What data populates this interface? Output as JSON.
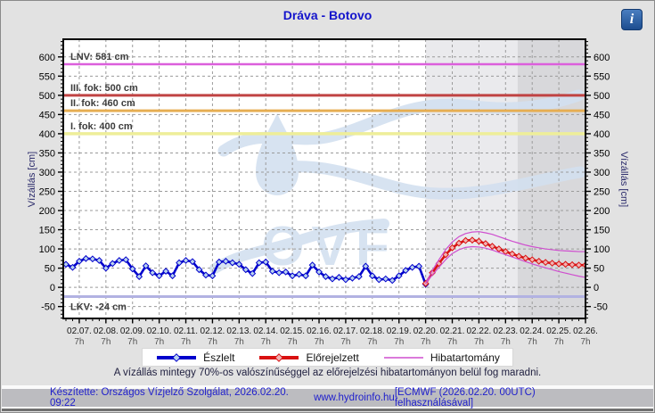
{
  "header": {
    "title": "Dráva - Botovo",
    "info_icon": "i"
  },
  "chart_data": {
    "type": "line",
    "title": "Dráva - Botovo",
    "x_axis": {
      "dates": [
        "02.07.",
        "02.08.",
        "02.09.",
        "02.10.",
        "02.11.",
        "02.12.",
        "02.13.",
        "02.14.",
        "02.15.",
        "02.16.",
        "02.17.",
        "02.18.",
        "02.19.",
        "02.20.",
        "02.21.",
        "02.22.",
        "02.23.",
        "02.24.",
        "02.25.",
        "02.26."
      ],
      "hour_label": "7h",
      "xlim_days": [
        -0.6,
        19.0
      ],
      "minor_tick_day_step": 0.25
    },
    "y_axis": {
      "label_left": "Vízállás [cm]",
      "label_right": "Vízállás [cm]",
      "ylim": [
        -81,
        646
      ],
      "tick_min": -50,
      "tick_max": 600,
      "tick_step": 50,
      "minor_tick_step": 10,
      "grid": true
    },
    "reference_lines": [
      {
        "name": "LNV",
        "label": "LNV: 581 cm",
        "value": 581,
        "color": "#dc5fdc",
        "width": 2.5,
        "label_below": false
      },
      {
        "name": "fok3",
        "label": "III. fok: 500 cm",
        "value": 500,
        "color": "#c04343",
        "width": 3,
        "label_below": false
      },
      {
        "name": "fok2",
        "label": "II. fok: 460 cm",
        "value": 460,
        "color": "#e6ae53",
        "width": 3,
        "label_below": false
      },
      {
        "name": "fok1",
        "label": "I. fok: 400 cm",
        "value": 400,
        "color": "#eeee99",
        "width": 3.5,
        "label_below": false
      },
      {
        "name": "LKV",
        "label": "LKV: -24 cm",
        "value": -24,
        "color": "#b2b2e2",
        "width": 3,
        "label_below": true
      }
    ],
    "shaded_regions": [
      {
        "from_day": 13.0,
        "to_day": 16.45,
        "color": "#eaeaed"
      },
      {
        "from_day": 16.45,
        "to_day": 19.0,
        "color": "#d8d8db"
      }
    ],
    "series": [
      {
        "name": "Észlelt",
        "type": "observed",
        "line_color": "#0000cc",
        "marker_fill": "#b9d2ee",
        "start_day": -0.5,
        "step_day": 0.25,
        "values": [
          60,
          52,
          68,
          75,
          74,
          70,
          50,
          62,
          70,
          72,
          48,
          28,
          56,
          38,
          30,
          42,
          30,
          64,
          70,
          67,
          46,
          32,
          30,
          66,
          68,
          64,
          60,
          46,
          36,
          64,
          66,
          42,
          38,
          40,
          30,
          34,
          30,
          58,
          40,
          28,
          22,
          26,
          20,
          24,
          28,
          55,
          30,
          20,
          22,
          18,
          30,
          44,
          52,
          55,
          8
        ]
      },
      {
        "name": "Előrejelzett",
        "type": "forecast",
        "line_color": "#d91111",
        "marker_fill": "#f1b2b2",
        "start_day": 13.0,
        "step_day": 0.25,
        "values": [
          10,
          38,
          62,
          85,
          103,
          115,
          122,
          123,
          120,
          114,
          107,
          100,
          93,
          87,
          81,
          76,
          72,
          68,
          65,
          63,
          61,
          60,
          59,
          58,
          58
        ]
      },
      {
        "name": "Hibatartomány felső",
        "type": "band",
        "line_color": "#cf4fcf",
        "start_day": 13.0,
        "step_day": 0.25,
        "values": [
          10,
          44,
          72,
          98,
          118,
          132,
          140,
          144,
          145,
          142,
          138,
          132,
          126,
          120,
          115,
          110,
          106,
          103,
          100,
          98,
          96,
          95,
          94,
          93,
          93
        ]
      },
      {
        "name": "Hibatartomány alsó",
        "type": "band",
        "line_color": "#cf4fcf",
        "start_day": 13.0,
        "step_day": 0.25,
        "values": [
          10,
          32,
          52,
          72,
          88,
          98,
          104,
          106,
          105,
          102,
          97,
          91,
          85,
          79,
          73,
          67,
          61,
          56,
          51,
          46,
          41,
          37,
          33,
          29,
          26
        ]
      }
    ],
    "watermark_text": "OVF",
    "watermark_color": "#d3e0f0",
    "legend_position": "bottom"
  },
  "legend": {
    "items": [
      {
        "label": "Észlelt",
        "type": "observed"
      },
      {
        "label": "Előrejelzett",
        "type": "forecast"
      },
      {
        "label": "Hibatartomány",
        "type": "band"
      }
    ]
  },
  "note": "A vízállás mintegy 70%-os valószínűséggel az előrejelzési hibatartományon belül fog maradni.",
  "footer": {
    "made_by": "Készítette: Országos Vízjelző Szolgálat, 2026.02.20. 09:22",
    "site": "www.hydroinfo.hu",
    "model": "[ECMWF (2026.02.20. 00UTC) felhasználásával]"
  }
}
